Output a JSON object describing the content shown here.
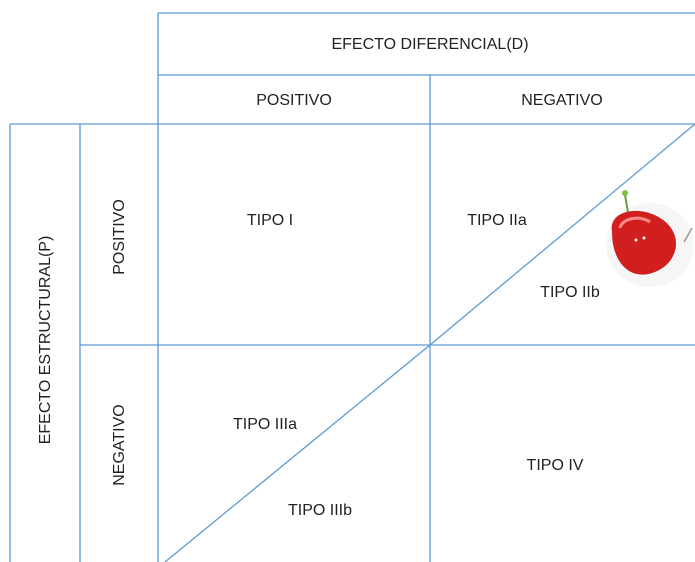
{
  "column_header": {
    "title": "EFECTO DIFERENCIAL(D)",
    "columns": [
      "POSITIVO",
      "NEGATIVO"
    ]
  },
  "row_header": {
    "title": "EFECTO ESTRUCTURAL(P)",
    "rows": [
      "POSITIVO",
      "NEGATIVO"
    ]
  },
  "cells": {
    "positive_positive": "TIPO I",
    "positive_negative_a": "TIPO IIa",
    "positive_negative_b": "TIPO IIb",
    "negative_positive_a": "TIPO IIIa",
    "negative_positive_b": "TIPO IIIb",
    "negative_negative": "TIPO IV"
  }
}
